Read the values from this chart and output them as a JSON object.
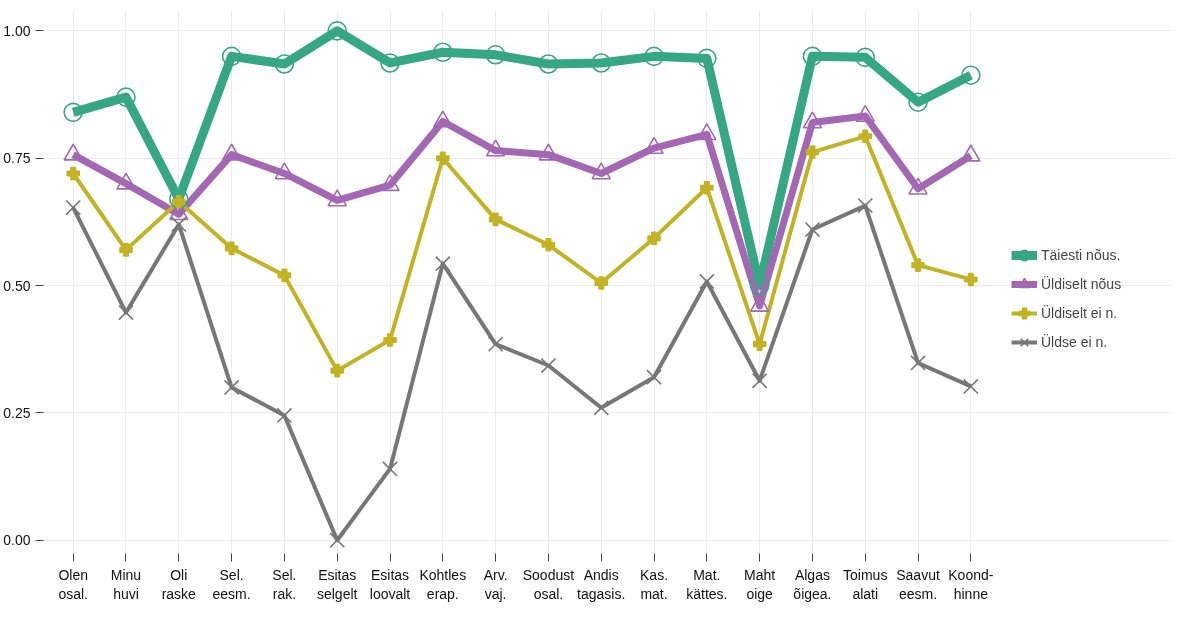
{
  "chart_data": {
    "type": "line",
    "categories": [
      "Olen\nosal.",
      "Minu\nhuvi",
      "Oli\nraske",
      "Sel.\neesm.",
      "Sel.\nrak.",
      "Esitas\nselgelt",
      "Esitas\nloovalt",
      "Kohtles\nerap.",
      "Arv.\nvaj.",
      "Soodust\nosal.",
      "Andis\ntagasis.",
      "Kas.\nmat.",
      "Mat.\nkättes.",
      "Maht\noige",
      "Algas\nõigea.",
      "Toimus\nalati",
      "Saavut\neesm.",
      "Koond-\nhinne"
    ],
    "series": [
      {
        "name": "Täiesti nõus.",
        "color": "#35a783",
        "marker": "circle",
        "values": [
          0.84,
          0.87,
          0.67,
          0.95,
          0.935,
          1.0,
          0.937,
          0.958,
          0.953,
          0.935,
          0.937,
          0.95,
          0.946,
          0.5,
          0.95,
          0.948,
          0.86,
          0.913
        ]
      },
      {
        "name": "Üldiselt nõus",
        "color": "#a367b3",
        "marker": "triangle",
        "values": [
          0.757,
          0.7,
          0.64,
          0.757,
          0.72,
          0.667,
          0.697,
          0.822,
          0.765,
          0.757,
          0.72,
          0.77,
          0.797,
          0.46,
          0.82,
          0.833,
          0.69,
          0.755
        ]
      },
      {
        "name": "Üldiselt ei n.",
        "color": "#c3b323",
        "marker": "cross",
        "values": [
          0.72,
          0.57,
          0.665,
          0.573,
          0.52,
          0.333,
          0.393,
          0.75,
          0.63,
          0.58,
          0.505,
          0.593,
          0.692,
          0.385,
          0.762,
          0.793,
          0.54,
          0.512
        ]
      },
      {
        "name": "Üldse ei n.",
        "color": "#777777",
        "marker": "x",
        "values": [
          0.653,
          0.447,
          0.62,
          0.3,
          0.245,
          0.0,
          0.14,
          0.543,
          0.385,
          0.343,
          0.26,
          0.32,
          0.508,
          0.313,
          0.61,
          0.657,
          0.348,
          0.302
        ]
      }
    ],
    "ylim": [
      -0.03,
      1.04
    ],
    "yticks": [
      {
        "value": 0,
        "label": "0.00"
      },
      {
        "value": 0.25,
        "label": "0.25"
      },
      {
        "value": 0.5,
        "label": "0.50"
      },
      {
        "value": 0.75,
        "label": "0.75"
      },
      {
        "value": 1,
        "label": "1.00"
      }
    ],
    "grid": true,
    "legend": "right"
  }
}
